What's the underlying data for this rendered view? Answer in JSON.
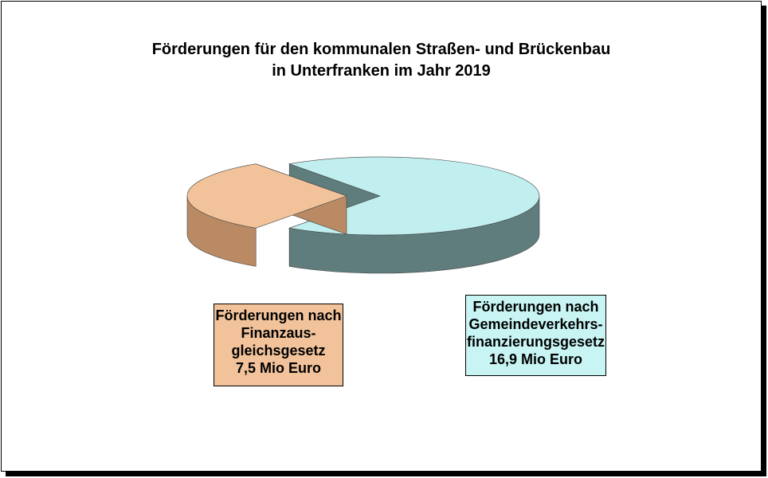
{
  "chart_data": {
    "type": "pie",
    "title": "Förderungen für den kommunalen Straßen- und Brückenbau",
    "subtitle": "in Unterfranken im Jahr 2019",
    "unit": "Mio Euro",
    "slices": [
      {
        "label_lines": [
          "Förderungen nach",
          "Finanzaus-",
          "gleichsgesetz"
        ],
        "value": 7.5,
        "value_text": "7,5 Mio Euro",
        "color": "#f2c39b",
        "side_color": "#b98a64",
        "exploded": true
      },
      {
        "label_lines": [
          "Förderungen nach",
          "Gemeindeverkehrs-",
          "finanzierungsgesetz"
        ],
        "value": 16.9,
        "value_text": "16,9 Mio Euro",
        "color": "#c1eeee",
        "side_color": "#5f7d7d",
        "exploded": false
      }
    ]
  }
}
